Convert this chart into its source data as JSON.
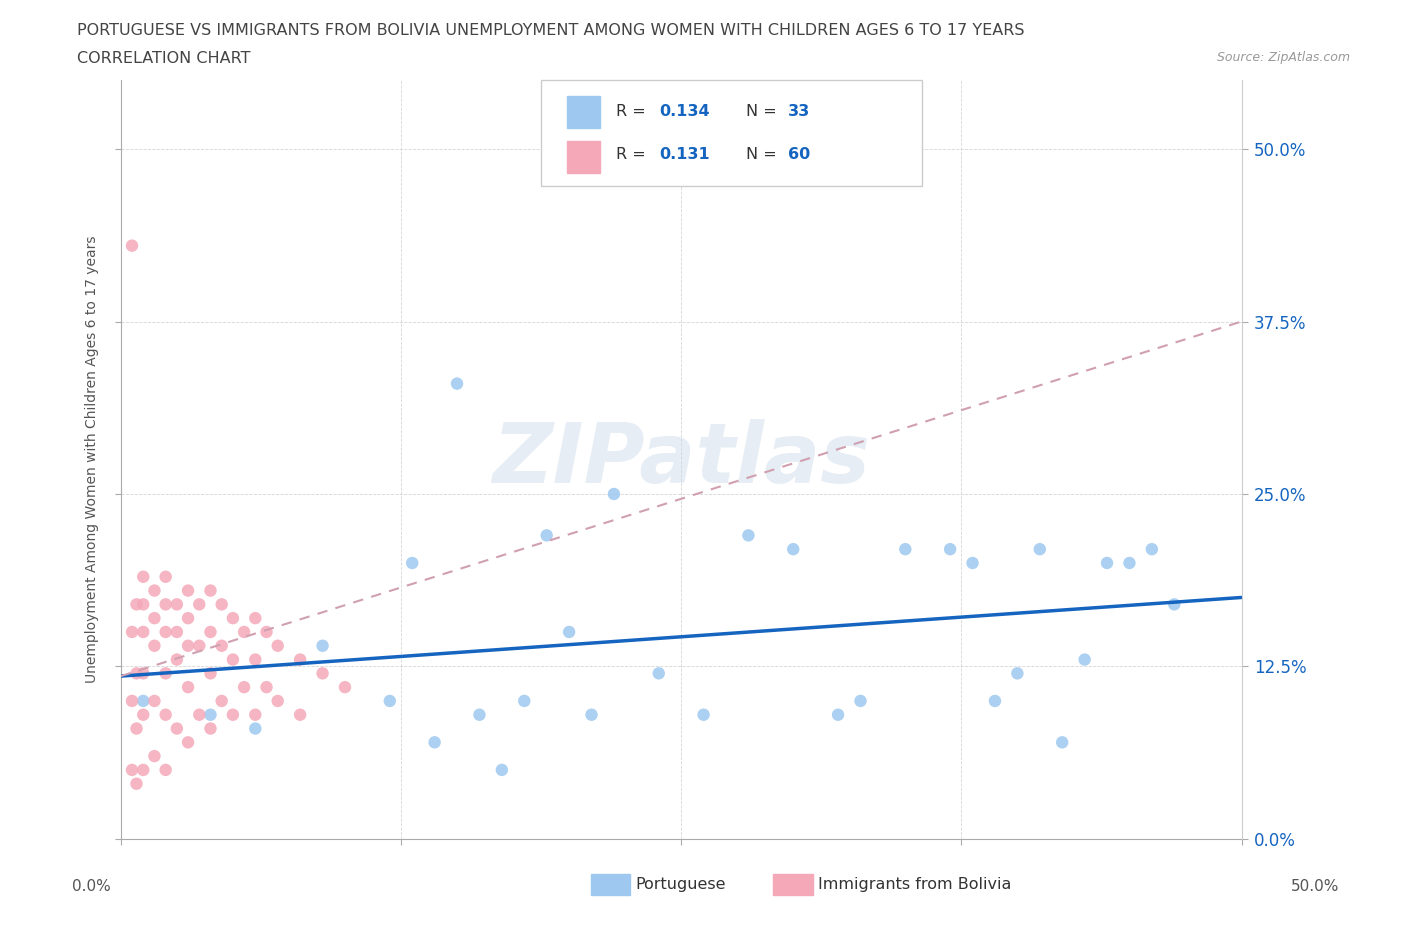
{
  "title_line1": "PORTUGUESE VS IMMIGRANTS FROM BOLIVIA UNEMPLOYMENT AMONG WOMEN WITH CHILDREN AGES 6 TO 17 YEARS",
  "title_line2": "CORRELATION CHART",
  "source_text": "Source: ZipAtlas.com",
  "ylabel": "Unemployment Among Women with Children Ages 6 to 17 years",
  "xlim": [
    0,
    0.5
  ],
  "ylim": [
    0,
    0.55
  ],
  "xtick_vals": [
    0.0,
    0.125,
    0.25,
    0.375,
    0.5
  ],
  "ytick_vals": [
    0.0,
    0.125,
    0.25,
    0.375,
    0.5
  ],
  "blue_scatter_color": "#9ec8ef",
  "pink_scatter_color": "#f4a8b8",
  "trend_blue_color": "#1565C0",
  "trend_pink_color": "#d0a0b0",
  "R_blue": 0.134,
  "N_blue": 33,
  "R_pink": 0.131,
  "N_pink": 60,
  "legend_label_blue": "Portuguese",
  "legend_label_pink": "Immigrants from Bolivia",
  "watermark": "ZIPatlas",
  "portuguese_x": [
    0.01,
    0.04,
    0.06,
    0.09,
    0.12,
    0.13,
    0.14,
    0.15,
    0.16,
    0.17,
    0.18,
    0.19,
    0.2,
    0.21,
    0.22,
    0.24,
    0.26,
    0.28,
    0.3,
    0.32,
    0.33,
    0.35,
    0.37,
    0.38,
    0.39,
    0.4,
    0.41,
    0.42,
    0.43,
    0.44,
    0.45,
    0.46,
    0.47
  ],
  "portuguese_y": [
    0.1,
    0.09,
    0.08,
    0.14,
    0.1,
    0.2,
    0.07,
    0.33,
    0.09,
    0.05,
    0.1,
    0.22,
    0.15,
    0.09,
    0.25,
    0.12,
    0.09,
    0.22,
    0.21,
    0.09,
    0.1,
    0.21,
    0.21,
    0.2,
    0.1,
    0.12,
    0.21,
    0.07,
    0.13,
    0.2,
    0.2,
    0.21,
    0.17
  ],
  "bolivia_x": [
    0.005,
    0.005,
    0.005,
    0.005,
    0.007,
    0.007,
    0.007,
    0.007,
    0.01,
    0.01,
    0.01,
    0.01,
    0.01,
    0.01,
    0.015,
    0.015,
    0.015,
    0.015,
    0.015,
    0.02,
    0.02,
    0.02,
    0.02,
    0.02,
    0.02,
    0.025,
    0.025,
    0.025,
    0.025,
    0.03,
    0.03,
    0.03,
    0.03,
    0.03,
    0.035,
    0.035,
    0.035,
    0.04,
    0.04,
    0.04,
    0.04,
    0.045,
    0.045,
    0.045,
    0.05,
    0.05,
    0.05,
    0.055,
    0.055,
    0.06,
    0.06,
    0.06,
    0.065,
    0.065,
    0.07,
    0.07,
    0.08,
    0.08,
    0.09,
    0.1
  ],
  "bolivia_y": [
    0.43,
    0.15,
    0.1,
    0.05,
    0.17,
    0.12,
    0.08,
    0.04,
    0.19,
    0.17,
    0.15,
    0.12,
    0.09,
    0.05,
    0.18,
    0.16,
    0.14,
    0.1,
    0.06,
    0.19,
    0.17,
    0.15,
    0.12,
    0.09,
    0.05,
    0.17,
    0.15,
    0.13,
    0.08,
    0.18,
    0.16,
    0.14,
    0.11,
    0.07,
    0.17,
    0.14,
    0.09,
    0.18,
    0.15,
    0.12,
    0.08,
    0.17,
    0.14,
    0.1,
    0.16,
    0.13,
    0.09,
    0.15,
    0.11,
    0.16,
    0.13,
    0.09,
    0.15,
    0.11,
    0.14,
    0.1,
    0.13,
    0.09,
    0.12,
    0.11
  ],
  "blue_trend_x0": 0.0,
  "blue_trend_y0": 0.118,
  "blue_trend_x1": 0.5,
  "blue_trend_y1": 0.175,
  "pink_trend_x0": 0.0,
  "pink_trend_y0": 0.118,
  "pink_trend_x1": 0.5,
  "pink_trend_y1": 0.375
}
